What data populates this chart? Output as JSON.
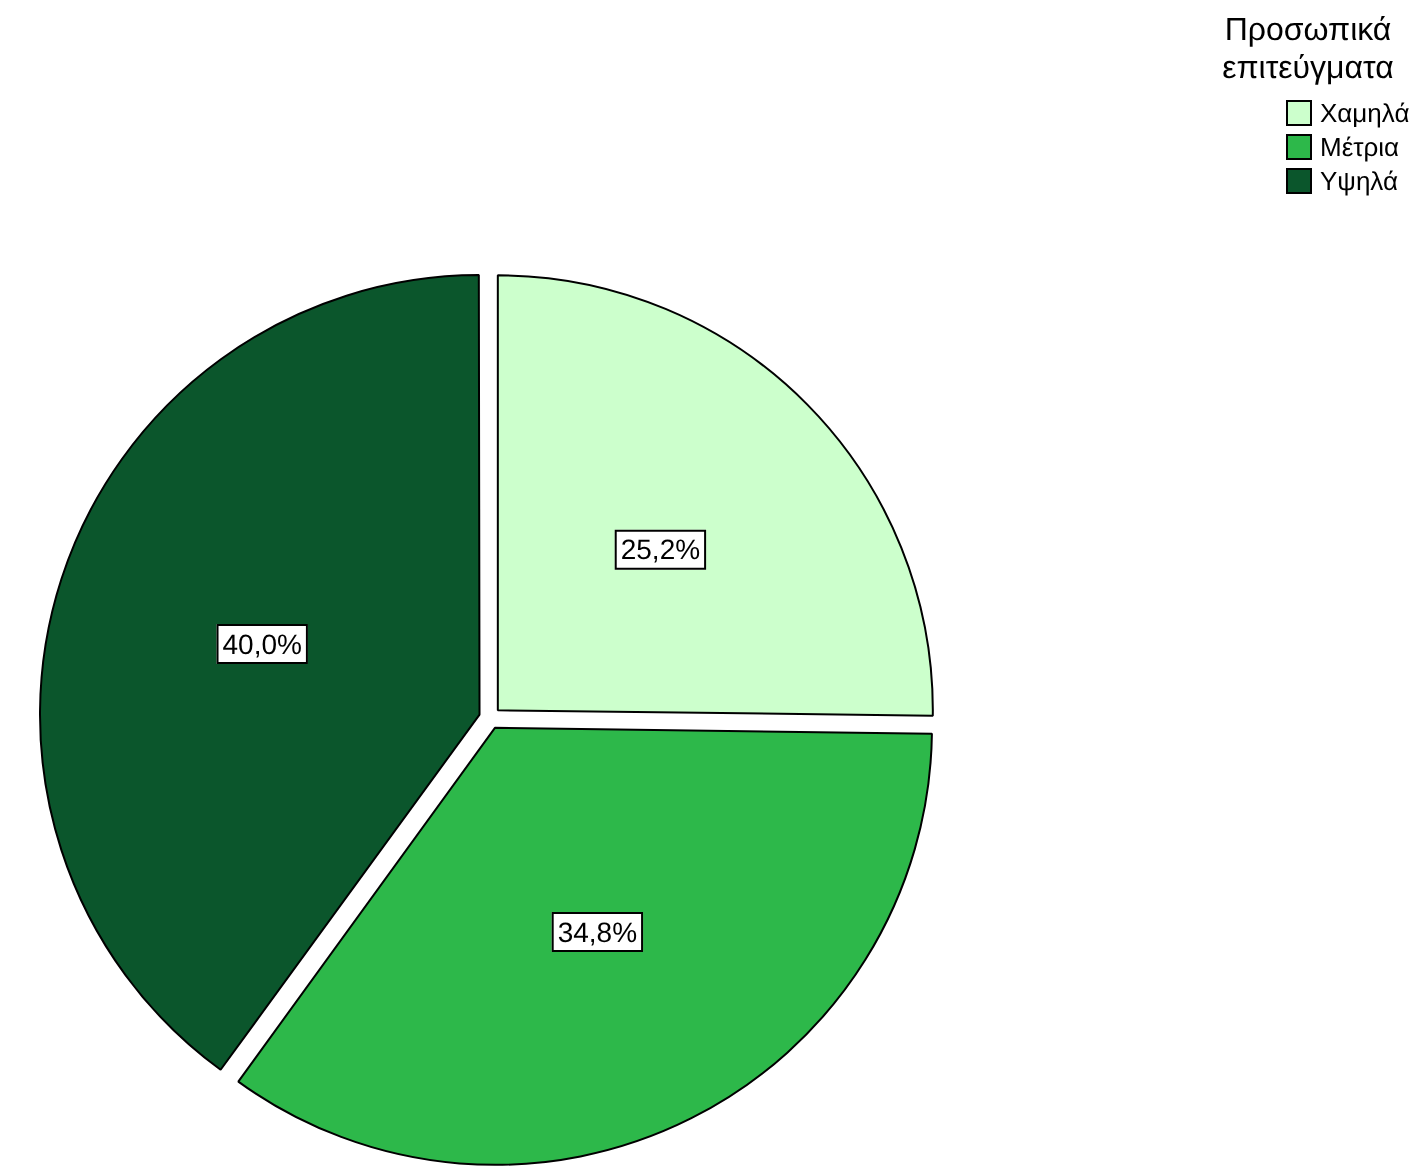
{
  "chart_data": {
    "type": "pie",
    "legend_title": "Προσωπικά επιτεύγματα",
    "legend": "top right",
    "categories": [
      "Χαμηλά",
      "Μέτρια",
      "Υψηλά"
    ],
    "values": [
      25.2,
      34.8,
      40.0
    ],
    "colors": [
      "#ccffcc",
      "#2db84a",
      "#0b562c"
    ],
    "value_labels": [
      "25,2%",
      "34,8%",
      "40,0%"
    ]
  }
}
